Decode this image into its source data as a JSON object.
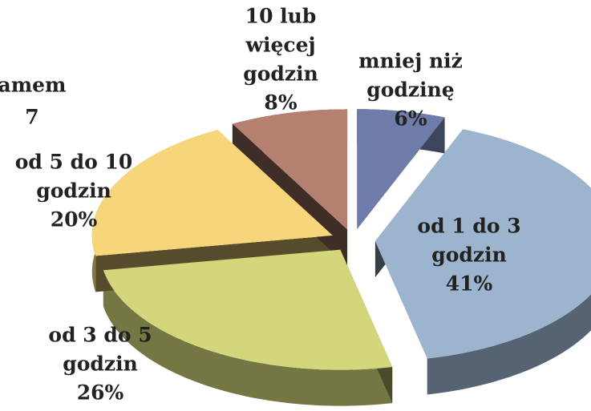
{
  "chart_data": {
    "type": "pie",
    "title_lines": [
      "amem",
      "7"
    ],
    "categories": [
      [
        "mniej niż",
        "godzinę"
      ],
      [
        "od 1  do 3",
        "godzin"
      ],
      [
        "od 3  do 5",
        "godzin"
      ],
      [
        "od 5  do 10",
        "godzin"
      ],
      [
        "10 lub",
        "więcej",
        "godzin"
      ]
    ],
    "values": [
      6,
      41,
      26,
      20,
      8
    ],
    "value_labels": [
      "6%",
      "41%",
      "26%",
      "20%",
      "8%"
    ],
    "colors": [
      "#6f7ba8",
      "#9db4cf",
      "#d3d67a",
      "#f7d57a",
      "#b5806f"
    ]
  }
}
